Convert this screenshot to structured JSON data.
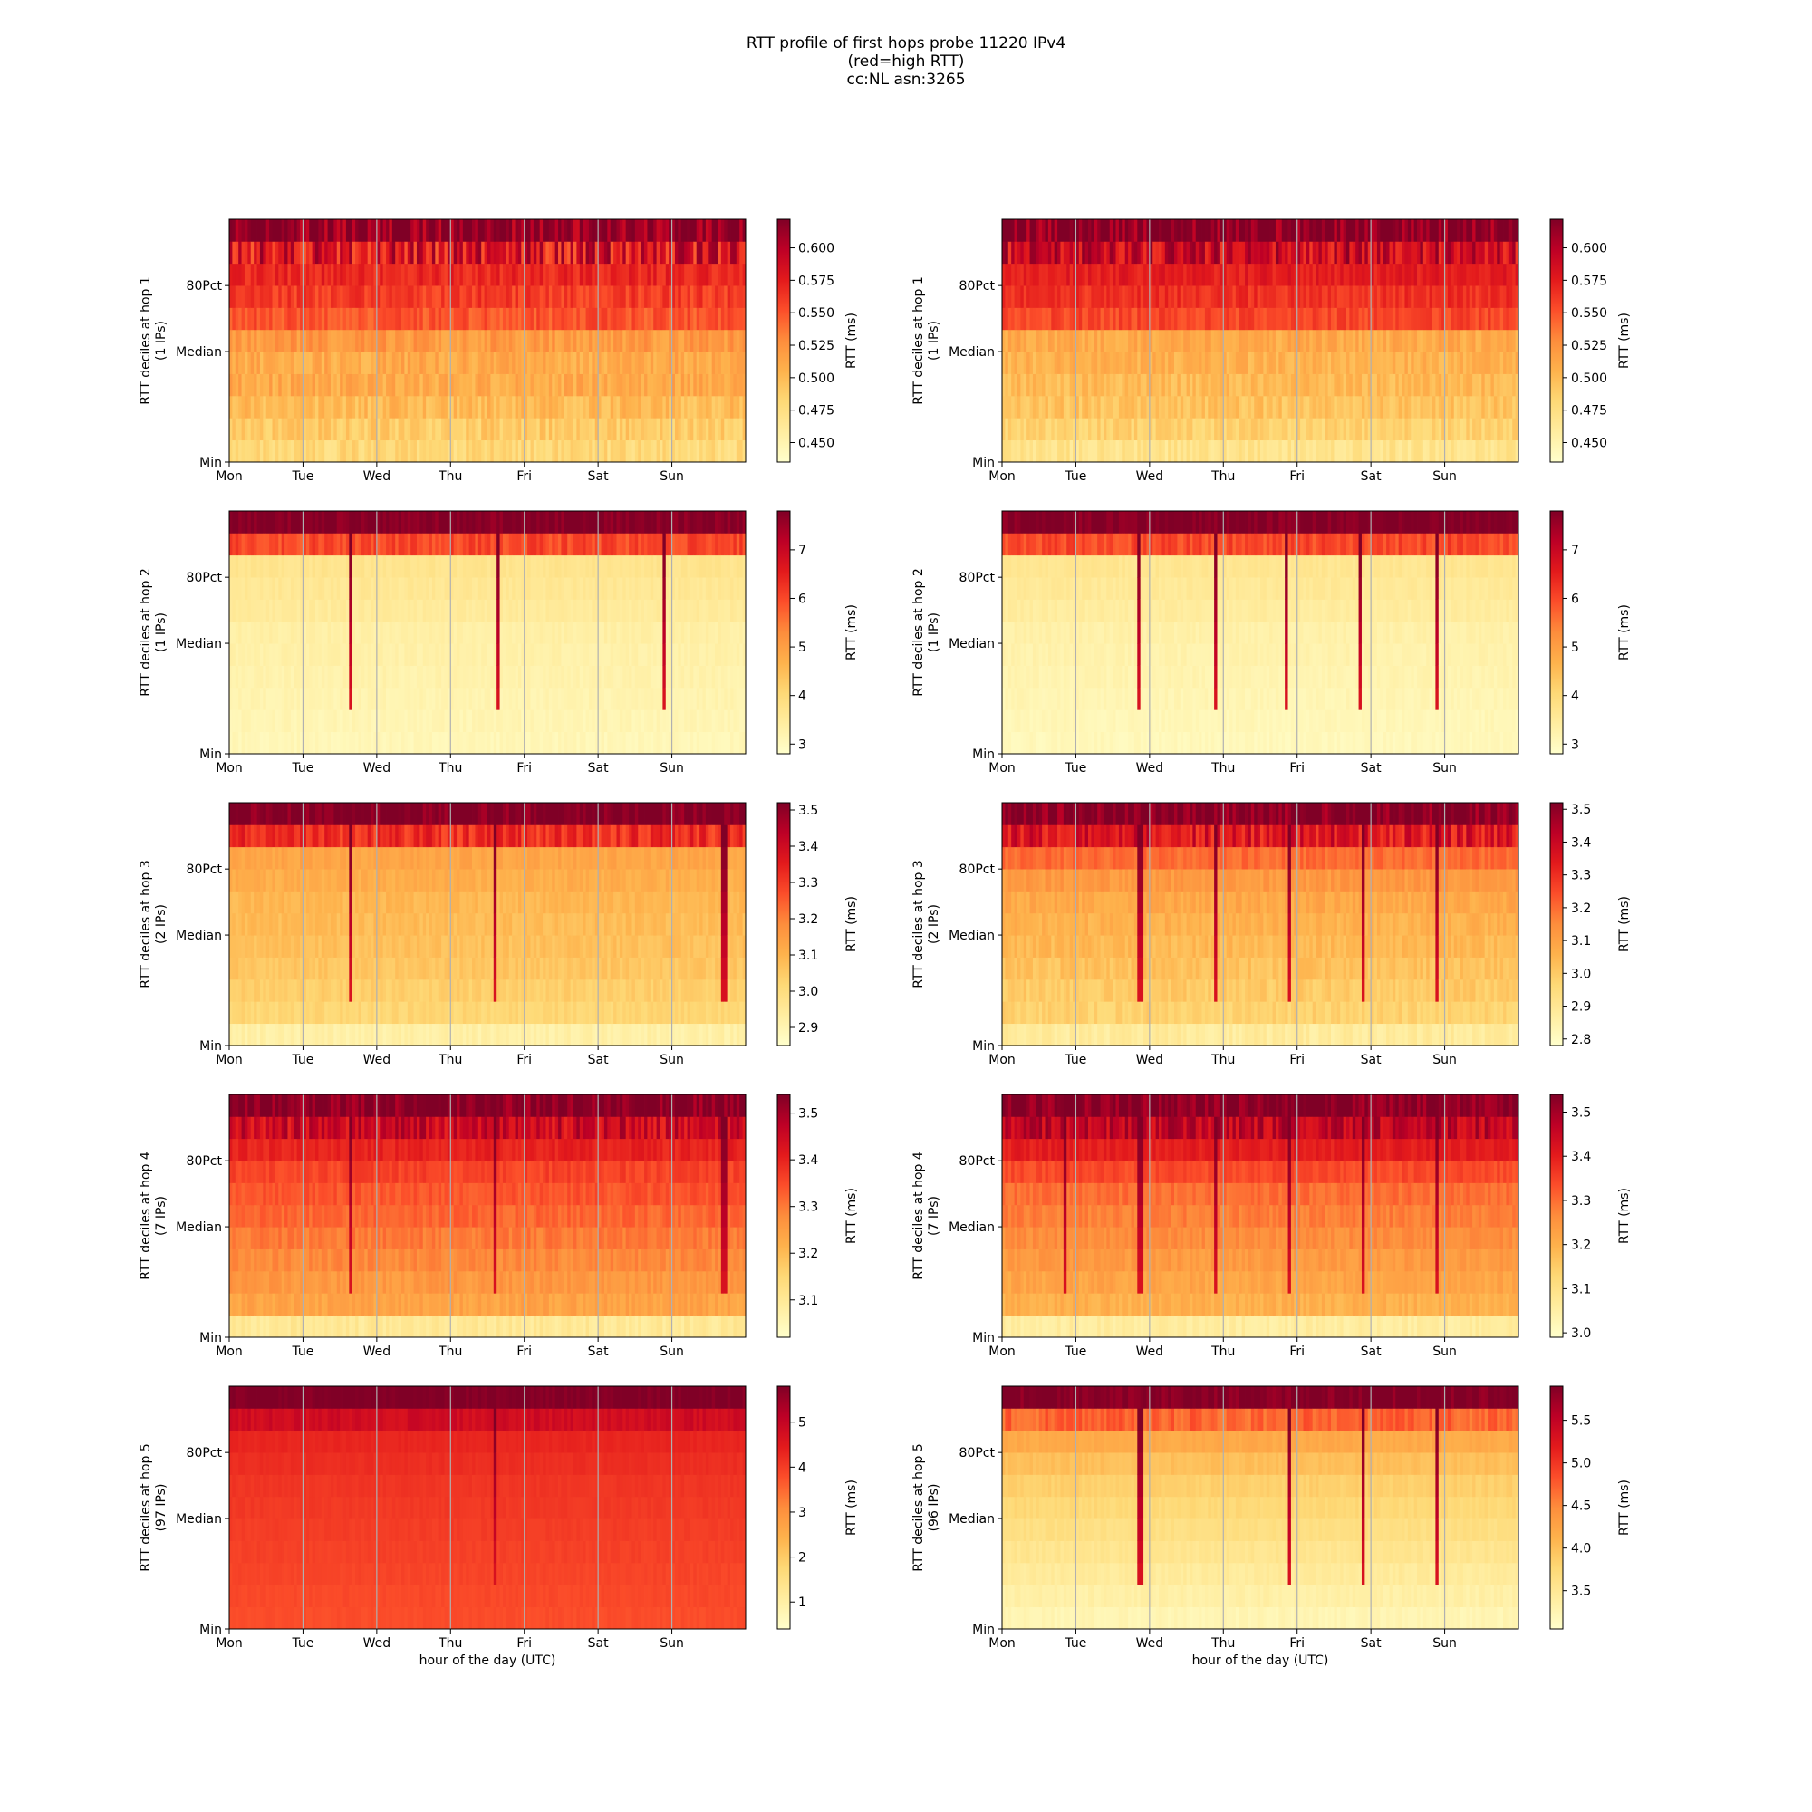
{
  "figure": {
    "title_lines": [
      "RTT profile of first hops probe 11220 IPv4",
      "(red=high RTT)",
      "cc:NL asn:3265"
    ],
    "xlabel": "hour of the day (UTC)"
  },
  "chart_data": [
    {
      "type": "heatmap",
      "row": 1,
      "col": 1,
      "ylabel": "RTT deciles at hop 1",
      "ylabel2": "(1 IPs)",
      "x_ticks": [
        "Mon",
        "Tue",
        "Wed",
        "Thu",
        "Fri",
        "Sat",
        "Sun"
      ],
      "y_ticks": [
        "Min",
        "Median",
        "80Pct"
      ],
      "colorbar_label": "RTT (ms)",
      "colorbar_range": [
        0.435,
        0.622
      ],
      "colorbar_ticks": [
        "0.450",
        "0.475",
        "0.500",
        "0.525",
        "0.550",
        "0.575",
        "0.600"
      ],
      "colorbar_tick_values": [
        0.45,
        0.475,
        0.5,
        0.525,
        0.55,
        0.575,
        0.6
      ],
      "profile": [
        0.48,
        0.49,
        0.5,
        0.51,
        0.51,
        0.52,
        0.55,
        0.56,
        0.57,
        0.58,
        0.622
      ],
      "noise": 0.012,
      "spikes": [],
      "xlabel": ""
    },
    {
      "type": "heatmap",
      "row": 1,
      "col": 2,
      "ylabel": "RTT deciles at hop 1",
      "ylabel2": "(1 IPs)",
      "x_ticks": [
        "Mon",
        "Tue",
        "Wed",
        "Thu",
        "Fri",
        "Sat",
        "Sun"
      ],
      "y_ticks": [
        "Min",
        "Median",
        "80Pct"
      ],
      "colorbar_label": "RTT (ms)",
      "colorbar_range": [
        0.435,
        0.622
      ],
      "colorbar_ticks": [
        "0.450",
        "0.475",
        "0.500",
        "0.525",
        "0.550",
        "0.575",
        "0.600"
      ],
      "colorbar_tick_values": [
        0.45,
        0.475,
        0.5,
        0.525,
        0.55,
        0.575,
        0.6
      ],
      "profile": [
        0.47,
        0.485,
        0.495,
        0.5,
        0.505,
        0.51,
        0.555,
        0.565,
        0.575,
        0.59,
        0.622
      ],
      "noise": 0.01,
      "spikes": [],
      "xlabel": ""
    },
    {
      "type": "heatmap",
      "row": 2,
      "col": 1,
      "ylabel": "RTT deciles at hop 2",
      "ylabel2": "(1 IPs)",
      "x_ticks": [
        "Mon",
        "Tue",
        "Wed",
        "Thu",
        "Fri",
        "Sat",
        "Sun"
      ],
      "y_ticks": [
        "Min",
        "Median",
        "80Pct"
      ],
      "colorbar_label": "RTT (ms)",
      "colorbar_range": [
        2.8,
        7.8
      ],
      "colorbar_ticks": [
        "3",
        "4",
        "5",
        "6",
        "7"
      ],
      "colorbar_tick_values": [
        3,
        4,
        5,
        6,
        7
      ],
      "profile": [
        3.1,
        3.15,
        3.2,
        3.25,
        3.3,
        3.35,
        3.5,
        3.6,
        3.7,
        6.0,
        7.8
      ],
      "noise": 0.1,
      "spikes": [
        0.23,
        0.52,
        0.84
      ],
      "xlabel": ""
    },
    {
      "type": "heatmap",
      "row": 2,
      "col": 2,
      "ylabel": "RTT deciles at hop 2",
      "ylabel2": "(1 IPs)",
      "x_ticks": [
        "Mon",
        "Tue",
        "Wed",
        "Thu",
        "Fri",
        "Sat",
        "Sun"
      ],
      "y_ticks": [
        "Min",
        "Median",
        "80Pct"
      ],
      "colorbar_label": "RTT (ms)",
      "colorbar_range": [
        2.8,
        7.8
      ],
      "colorbar_ticks": [
        "3",
        "4",
        "5",
        "6",
        "7"
      ],
      "colorbar_tick_values": [
        3,
        4,
        5,
        6,
        7
      ],
      "profile": [
        3.05,
        3.1,
        3.15,
        3.2,
        3.25,
        3.3,
        3.45,
        3.55,
        3.65,
        6.0,
        7.8
      ],
      "noise": 0.1,
      "spikes": [
        0.26,
        0.41,
        0.55,
        0.69,
        0.84
      ],
      "xlabel": ""
    },
    {
      "type": "heatmap",
      "row": 3,
      "col": 1,
      "ylabel": "RTT deciles at hop 3",
      "ylabel2": "(2 IPs)",
      "x_ticks": [
        "Mon",
        "Tue",
        "Wed",
        "Thu",
        "Fri",
        "Sat",
        "Sun"
      ],
      "y_ticks": [
        "Min",
        "Median",
        "80Pct"
      ],
      "colorbar_label": "RTT (ms)",
      "colorbar_range": [
        2.85,
        3.52
      ],
      "colorbar_ticks": [
        "2.9",
        "3.0",
        "3.1",
        "3.2",
        "3.3",
        "3.4",
        "3.5"
      ],
      "colorbar_tick_values": [
        2.9,
        3.0,
        3.1,
        3.2,
        3.3,
        3.4,
        3.5
      ],
      "profile": [
        2.92,
        3.02,
        3.04,
        3.06,
        3.07,
        3.08,
        3.09,
        3.11,
        3.13,
        3.32,
        3.52
      ],
      "noise": 0.02,
      "spikes": [
        0.23,
        0.51,
        0.955
      ],
      "xlabel": ""
    },
    {
      "type": "heatmap",
      "row": 3,
      "col": 2,
      "ylabel": "RTT deciles at hop 3",
      "ylabel2": "(2 IPs)",
      "x_ticks": [
        "Mon",
        "Tue",
        "Wed",
        "Thu",
        "Fri",
        "Sat",
        "Sun"
      ],
      "y_ticks": [
        "Min",
        "Median",
        "80Pct"
      ],
      "colorbar_label": "RTT (ms)",
      "colorbar_range": [
        2.78,
        3.52
      ],
      "colorbar_ticks": [
        "2.8",
        "2.9",
        "3.0",
        "3.1",
        "3.2",
        "3.3",
        "3.4",
        "3.5"
      ],
      "colorbar_tick_values": [
        2.8,
        2.9,
        3.0,
        3.1,
        3.2,
        3.3,
        3.4,
        3.5
      ],
      "profile": [
        2.88,
        2.98,
        3.0,
        3.02,
        3.04,
        3.06,
        3.08,
        3.12,
        3.2,
        3.35,
        3.52
      ],
      "noise": 0.03,
      "spikes": [
        0.265,
        0.41,
        0.555,
        0.695,
        0.84
      ],
      "xlabel": ""
    },
    {
      "type": "heatmap",
      "row": 4,
      "col": 1,
      "ylabel": "RTT deciles at hop 4",
      "ylabel2": "(7 IPs)",
      "x_ticks": [
        "Mon",
        "Tue",
        "Wed",
        "Thu",
        "Fri",
        "Sat",
        "Sun"
      ],
      "y_ticks": [
        "Min",
        "Median",
        "80Pct"
      ],
      "colorbar_label": "RTT (ms)",
      "colorbar_range": [
        3.02,
        3.54
      ],
      "colorbar_ticks": [
        "3.1",
        "3.2",
        "3.3",
        "3.4",
        "3.5"
      ],
      "colorbar_tick_values": [
        3.1,
        3.2,
        3.3,
        3.4,
        3.5
      ],
      "profile": [
        3.1,
        3.24,
        3.26,
        3.28,
        3.3,
        3.32,
        3.34,
        3.36,
        3.4,
        3.45,
        3.54
      ],
      "noise": 0.02,
      "spikes": [
        0.23,
        0.51,
        0.955
      ],
      "xlabel": ""
    },
    {
      "type": "heatmap",
      "row": 4,
      "col": 2,
      "ylabel": "RTT deciles at hop 4",
      "ylabel2": "(7 IPs)",
      "x_ticks": [
        "Mon",
        "Tue",
        "Wed",
        "Thu",
        "Fri",
        "Sat",
        "Sun"
      ],
      "y_ticks": [
        "Min",
        "Median",
        "80Pct"
      ],
      "colorbar_label": "RTT (ms)",
      "colorbar_range": [
        2.99,
        3.54
      ],
      "colorbar_ticks": [
        "3.0",
        "3.1",
        "3.2",
        "3.3",
        "3.4",
        "3.5"
      ],
      "colorbar_tick_values": [
        3.0,
        3.1,
        3.2,
        3.3,
        3.4,
        3.5
      ],
      "profile": [
        3.06,
        3.2,
        3.22,
        3.24,
        3.26,
        3.28,
        3.3,
        3.34,
        3.4,
        3.46,
        3.54
      ],
      "noise": 0.02,
      "spikes": [
        0.12,
        0.265,
        0.41,
        0.555,
        0.695,
        0.84
      ],
      "xlabel": ""
    },
    {
      "type": "heatmap",
      "row": 5,
      "col": 1,
      "ylabel": "RTT deciles at hop 5",
      "ylabel2": "(97 IPs)",
      "x_ticks": [
        "Mon",
        "Tue",
        "Wed",
        "Thu",
        "Fri",
        "Sat",
        "Sun"
      ],
      "y_ticks": [
        "Min",
        "Median",
        "80Pct"
      ],
      "colorbar_label": "RTT (ms)",
      "colorbar_range": [
        0.4,
        5.8
      ],
      "colorbar_ticks": [
        "1",
        "2",
        "3",
        "4",
        "5"
      ],
      "colorbar_tick_values": [
        1,
        2,
        3,
        4,
        5
      ],
      "profile": [
        3.8,
        3.85,
        3.9,
        3.95,
        4.0,
        4.05,
        4.1,
        4.2,
        4.3,
        4.8,
        5.8
      ],
      "noise": 0.06,
      "spikes": [
        0.51
      ],
      "xlabel": "hour of the day (UTC)"
    },
    {
      "type": "heatmap",
      "row": 5,
      "col": 2,
      "ylabel": "RTT deciles at hop 5",
      "ylabel2": "(96 IPs)",
      "x_ticks": [
        "Mon",
        "Tue",
        "Wed",
        "Thu",
        "Fri",
        "Sat",
        "Sun"
      ],
      "y_ticks": [
        "Min",
        "Median",
        "80Pct"
      ],
      "colorbar_label": "RTT (ms)",
      "colorbar_range": [
        3.05,
        5.9
      ],
      "colorbar_ticks": [
        "3.5",
        "4.0",
        "4.5",
        "5.0",
        "5.5"
      ],
      "colorbar_tick_values": [
        3.5,
        4.0,
        4.5,
        5.0,
        5.5
      ],
      "profile": [
        3.25,
        3.35,
        3.45,
        3.55,
        3.65,
        3.75,
        3.85,
        4.0,
        4.2,
        4.7,
        5.9
      ],
      "noise": 0.06,
      "spikes": [
        0.265,
        0.555,
        0.695,
        0.84
      ],
      "xlabel": "hour of the day (UTC)"
    }
  ]
}
